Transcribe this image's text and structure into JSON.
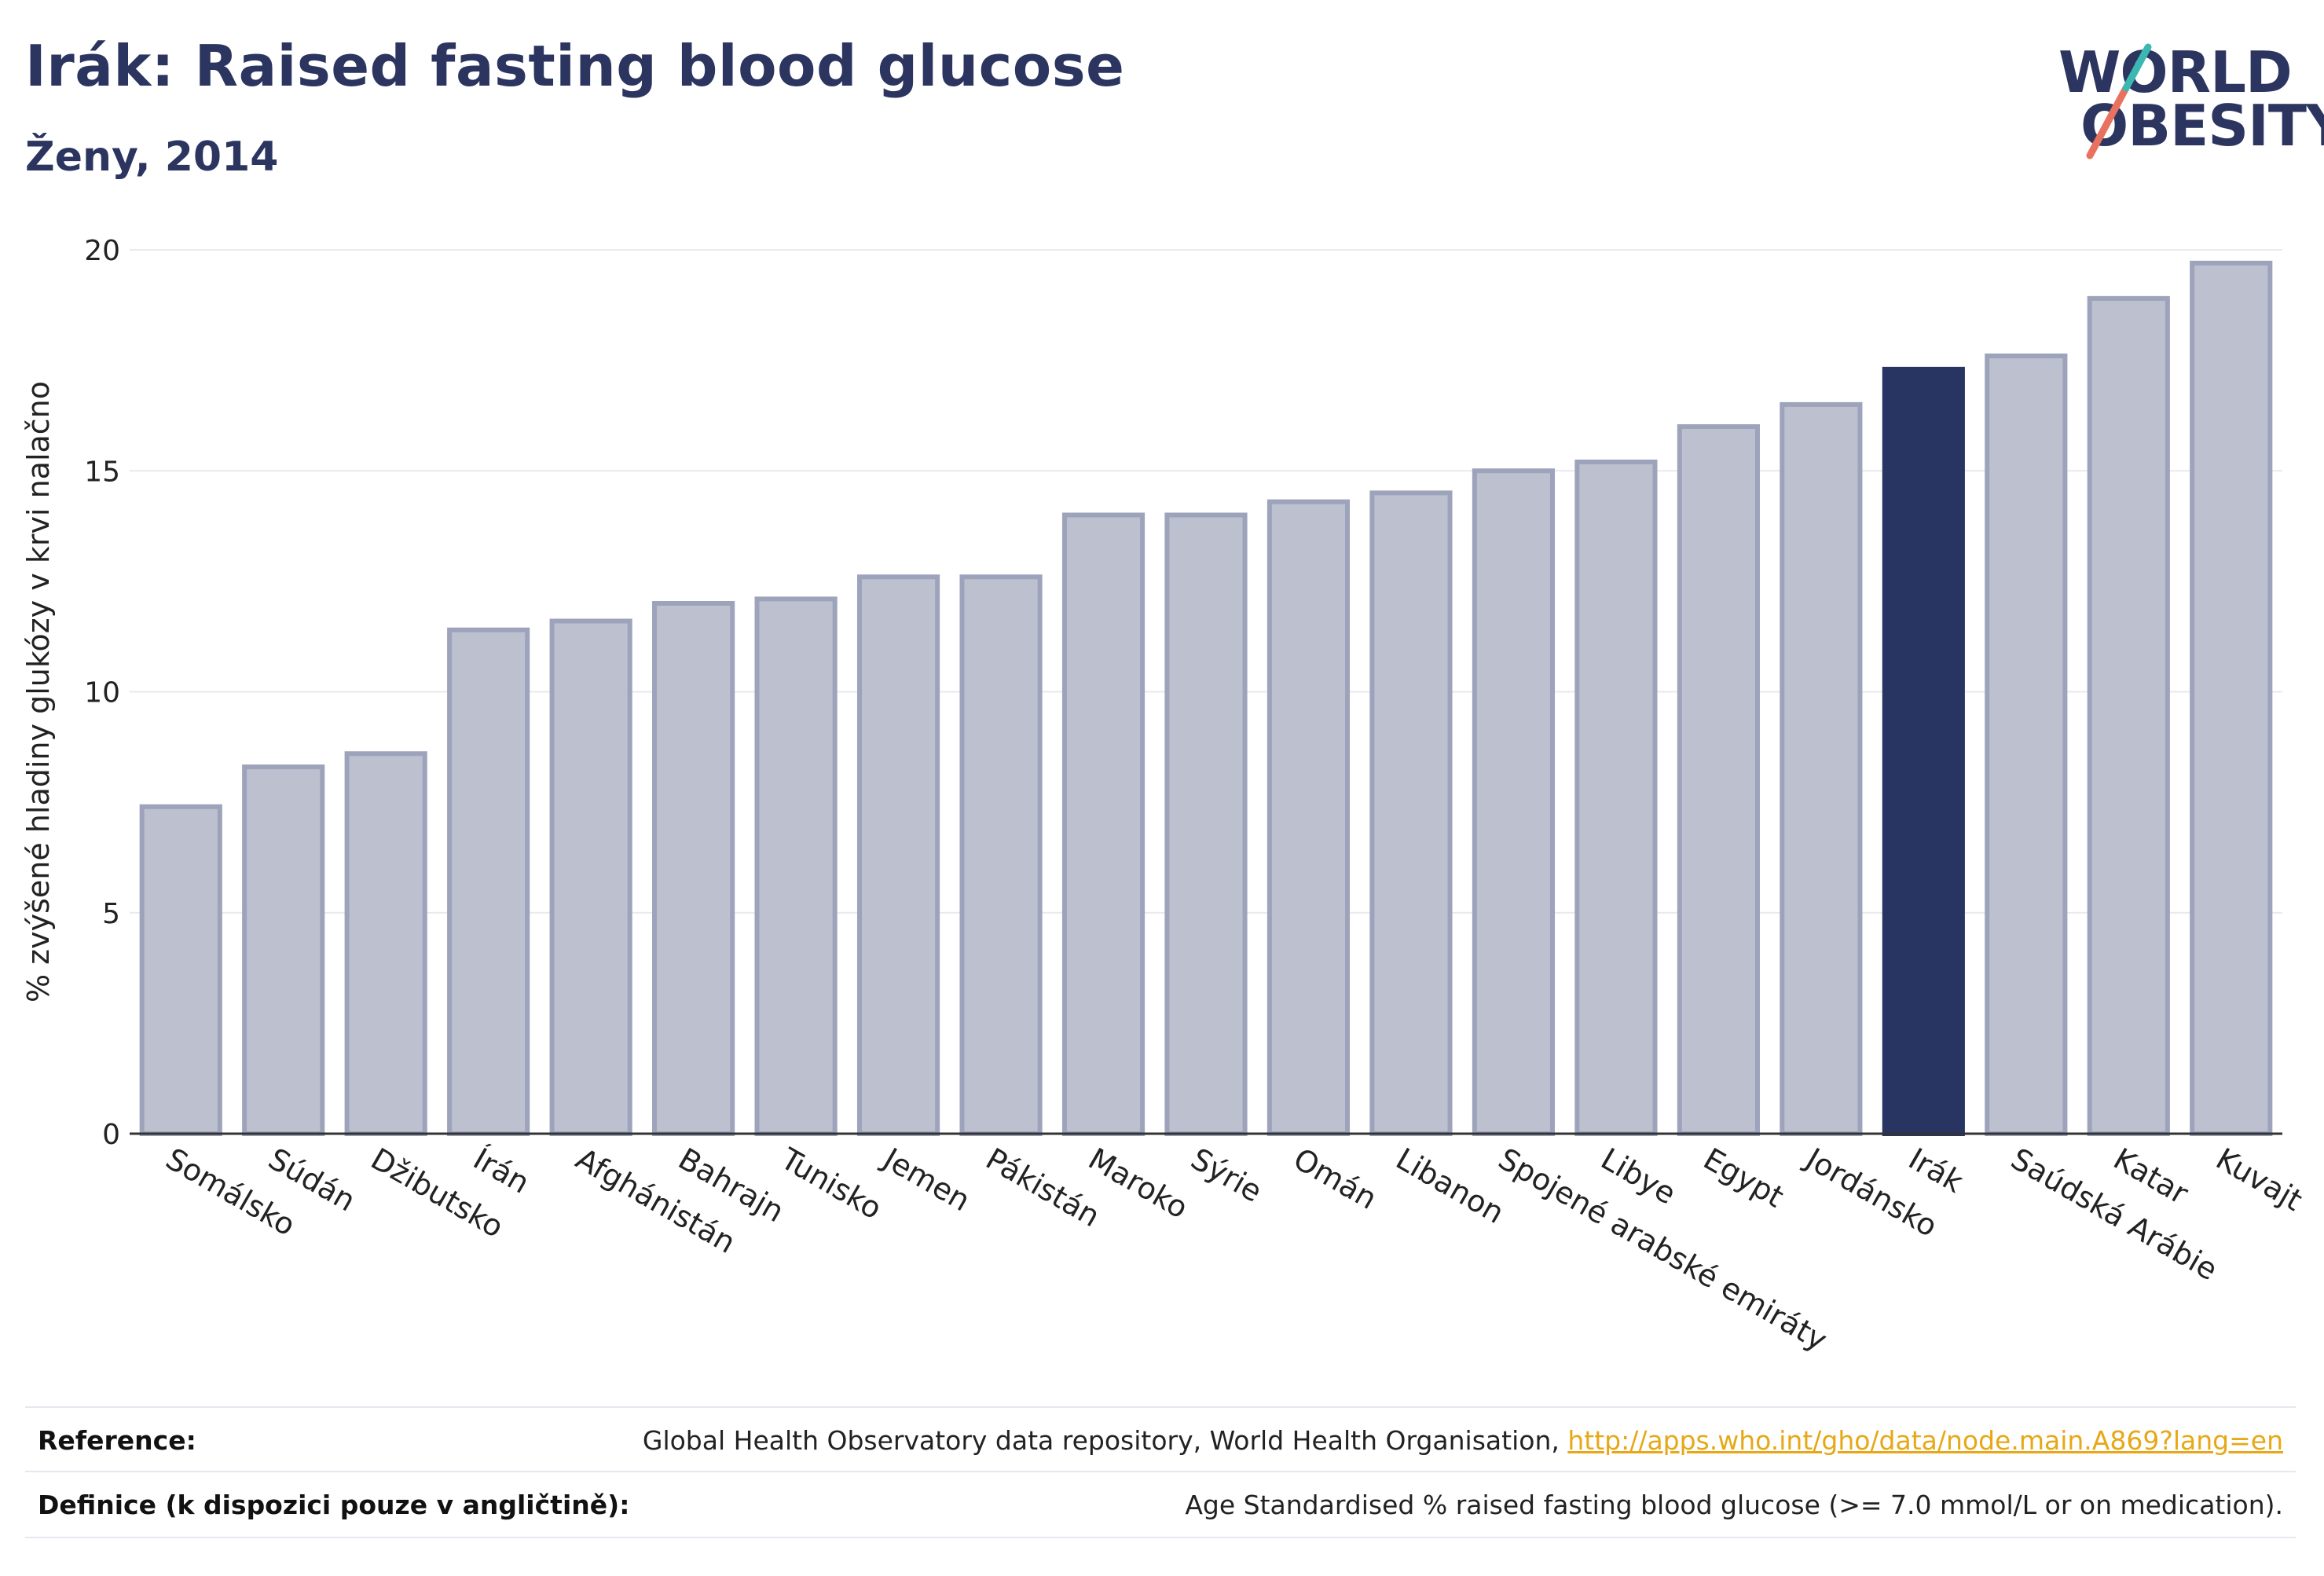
{
  "header": {
    "title": "Irák: Raised fasting blood glucose",
    "subtitle": "Ženy, 2014"
  },
  "logo": {
    "line1": "WORLD",
    "line2": "OBESITY"
  },
  "chart_data": {
    "type": "bar",
    "ylabel": "% zvýšené hladiny glukózy v krvi nalačno",
    "xlabel": "",
    "ylim": [
      0,
      20
    ],
    "yticks": [
      0,
      5,
      10,
      15,
      20
    ],
    "grid": true,
    "highlight": "Irák",
    "colors": {
      "bar": "#bcc0cf",
      "bar_border": "#9da3bb",
      "highlight": "#283462",
      "grid": "#e9e9ee",
      "axis": "#333333"
    },
    "categories": [
      "Somálsko",
      "Súdán",
      "Džibutsko",
      "Írán",
      "Afghánistán",
      "Bahrajn",
      "Tunisko",
      "Jemen",
      "Pákistán",
      "Maroko",
      "Sýrie",
      "Omán",
      "Libanon",
      "Spojené arabské emiráty",
      "Libye",
      "Egypt",
      "Jordánsko",
      "Irák",
      "Saúdská Arábie",
      "Katar",
      "Kuvajt"
    ],
    "values": [
      7.4,
      8.3,
      8.6,
      11.4,
      11.6,
      12.0,
      12.1,
      12.6,
      12.6,
      14.0,
      14.0,
      14.3,
      14.5,
      15.0,
      15.2,
      16.0,
      16.5,
      17.3,
      17.6,
      18.9,
      19.7
    ]
  },
  "footer": {
    "reference_label": "Reference:",
    "reference_text": "Global Health Observatory data repository, World Health Organisation, ",
    "reference_link": "http://apps.who.int/gho/data/node.main.A869?lang=en",
    "definition_label": "Definice (k dispozici pouze v angličtině):",
    "definition_text": "Age Standardised % raised fasting blood glucose (>= 7.0 mmol/L or on medication)."
  }
}
